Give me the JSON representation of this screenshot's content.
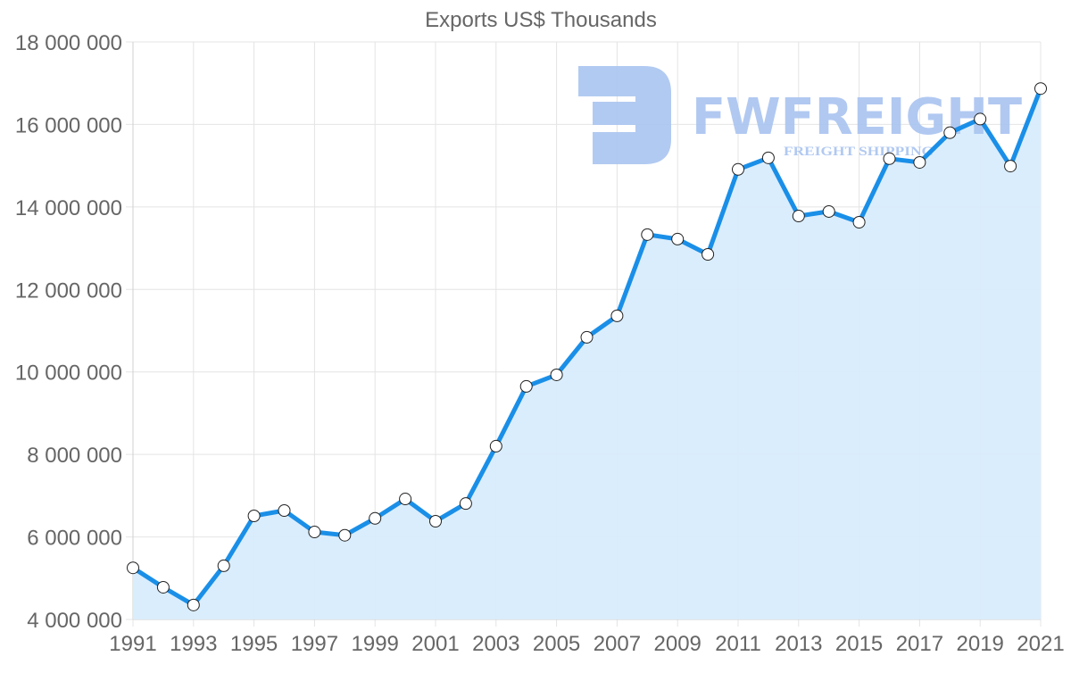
{
  "chart_data": {
    "type": "area",
    "title": "Exports US$ Thousands",
    "xlabel": "",
    "ylabel": "",
    "ylim": [
      4000000,
      18000000
    ],
    "grid": true,
    "legend": null,
    "y_ticks": [
      "4 000 000",
      "6 000 000",
      "8 000 000",
      "10 000 000",
      "12 000 000",
      "14 000 000",
      "16 000 000",
      "18 000 000"
    ],
    "x_tick_labels": [
      "1991",
      "1993",
      "1995",
      "1997",
      "1999",
      "2001",
      "2003",
      "2005",
      "2007",
      "2009",
      "2011",
      "2013",
      "2015",
      "2017",
      "2019",
      "2021"
    ],
    "categories": [
      "1991",
      "1992",
      "1993",
      "1994",
      "1995",
      "1996",
      "1997",
      "1998",
      "1999",
      "2000",
      "2001",
      "2002",
      "2003",
      "2004",
      "2005",
      "2006",
      "2007",
      "2008",
      "2009",
      "2010",
      "2011",
      "2012",
      "2013",
      "2014",
      "2015",
      "2016",
      "2017",
      "2018",
      "2019",
      "2020",
      "2021"
    ],
    "series": [
      {
        "name": "Exports US$ Thousands",
        "values": [
          5250000,
          4780000,
          4350000,
          5300000,
          6510000,
          6640000,
          6120000,
          6040000,
          6450000,
          6920000,
          6380000,
          6810000,
          8200000,
          9650000,
          9930000,
          10840000,
          11360000,
          13330000,
          13220000,
          12850000,
          14910000,
          15190000,
          13780000,
          13890000,
          13630000,
          15170000,
          15080000,
          15800000,
          16130000,
          14990000,
          16870000
        ]
      }
    ],
    "colors": {
      "line": "#1a8fe8",
      "fill": "#d8ecfc",
      "grid": "#e4e4e4",
      "text": "#666666",
      "point_fill": "#ffffff",
      "point_stroke": "#222222"
    }
  },
  "watermark": {
    "brand": "FWFREIGHT",
    "tagline": "FREIGHT SHIPPING",
    "color": "#a9c4f0"
  }
}
